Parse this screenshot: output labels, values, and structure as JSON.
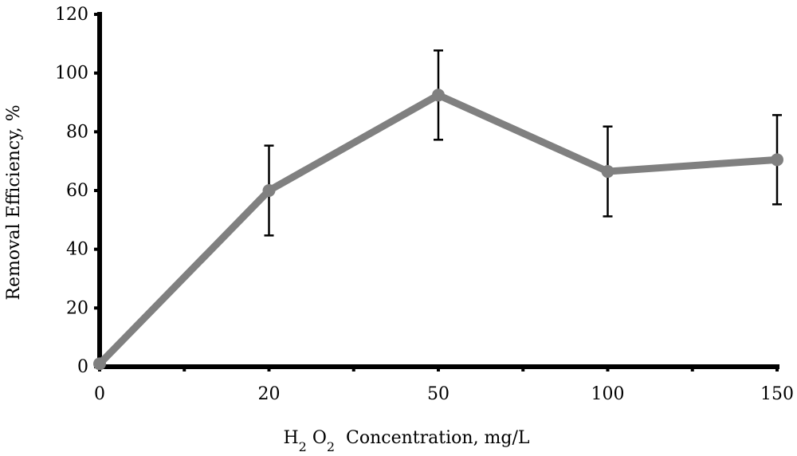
{
  "chart_data": {
    "type": "line",
    "categories": [
      "0",
      "20",
      "50",
      "100",
      "150"
    ],
    "values": [
      1,
      60,
      92.5,
      66.5,
      70.5
    ],
    "error": [
      0,
      15.3,
      15.2,
      15.3,
      15.2
    ],
    "ylim": [
      0,
      120
    ],
    "yticks": [
      "0",
      "20",
      "40",
      "60",
      "80",
      "100",
      "120"
    ],
    "xlabel": {
      "prefix": "H",
      "sub1": "2",
      "mid": " O",
      "sub2": "2",
      "suffix": "  Concentration, mg/L"
    },
    "ylabel": "Removal Efficiency, %",
    "line_color": "#808080",
    "axis_color": "#000000",
    "errorbar_color": "#000000",
    "grid": false,
    "legend": "none"
  }
}
